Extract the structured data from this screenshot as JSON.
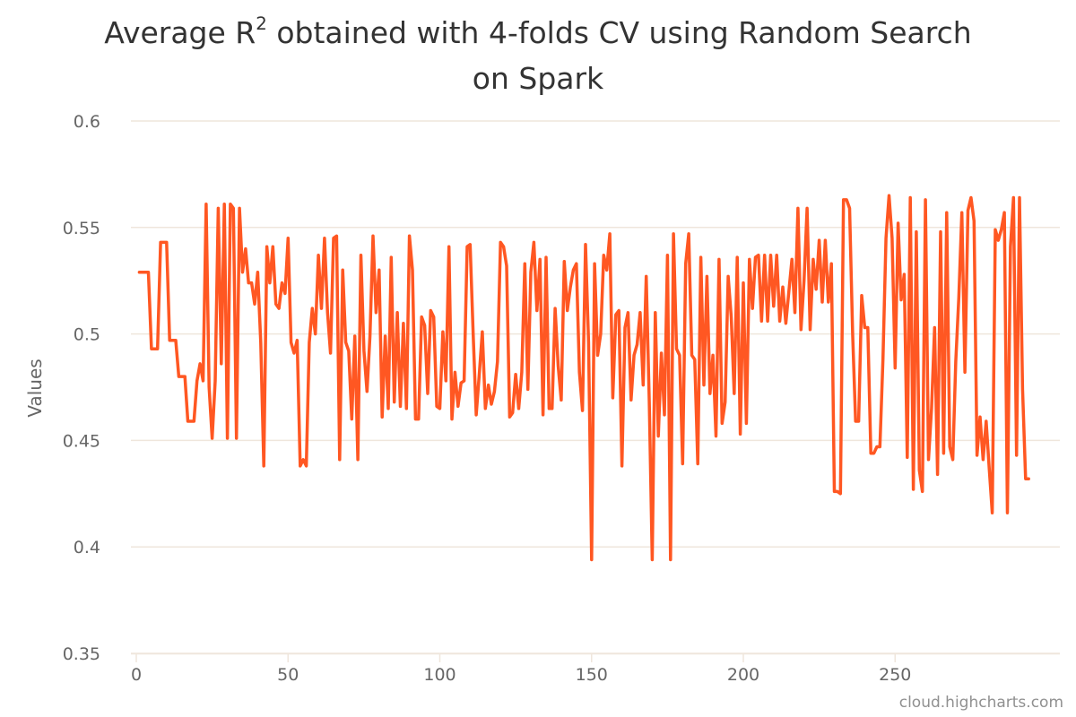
{
  "chart_data": {
    "type": "line",
    "title": "Average R² obtained with 4-folds CV using Random Search on Spark",
    "title_lines": [
      {
        "prefix": "Average R",
        "sup": "2",
        "suffix": " obtained with 4-folds CV using Random Search"
      },
      {
        "prefix": "on Spark",
        "sup": "",
        "suffix": ""
      }
    ],
    "xlabel": "",
    "ylabel": "Values",
    "xlim": [
      0,
      300
    ],
    "ylim": [
      0.35,
      0.6
    ],
    "x_ticks": [
      0,
      50,
      100,
      150,
      200,
      250
    ],
    "y_ticks": [
      {
        "value": 0.35,
        "label": "0.35"
      },
      {
        "value": 0.4,
        "label": "0.4"
      },
      {
        "value": 0.45,
        "label": "0.45"
      },
      {
        "value": 0.5,
        "label": "0.5"
      },
      {
        "value": 0.55,
        "label": "0.55"
      },
      {
        "value": 0.6,
        "label": "0.6"
      }
    ],
    "grid": true,
    "legend": "none",
    "series": [
      {
        "color": "#ff5722",
        "points": [
          [
            1,
            0.529
          ],
          [
            4,
            0.529
          ],
          [
            5,
            0.493
          ],
          [
            7,
            0.493
          ],
          [
            8,
            0.543
          ],
          [
            10,
            0.543
          ],
          [
            11,
            0.497
          ],
          [
            13,
            0.497
          ],
          [
            14,
            0.48
          ],
          [
            16,
            0.48
          ],
          [
            17,
            0.459
          ],
          [
            19,
            0.459
          ],
          [
            20,
            0.478
          ],
          [
            21,
            0.486
          ],
          [
            22,
            0.478
          ],
          [
            23,
            0.561
          ],
          [
            24,
            0.475
          ],
          [
            25,
            0.451
          ],
          [
            26,
            0.478
          ],
          [
            27,
            0.559
          ],
          [
            28,
            0.486
          ],
          [
            29,
            0.561
          ],
          [
            30,
            0.451
          ],
          [
            31,
            0.561
          ],
          [
            32,
            0.559
          ],
          [
            33,
            0.451
          ],
          [
            34,
            0.559
          ],
          [
            35,
            0.529
          ],
          [
            36,
            0.54
          ],
          [
            37,
            0.524
          ],
          [
            38,
            0.524
          ],
          [
            39,
            0.514
          ],
          [
            40,
            0.529
          ],
          [
            41,
            0.496
          ],
          [
            42,
            0.438
          ],
          [
            43,
            0.541
          ],
          [
            44,
            0.524
          ],
          [
            45,
            0.541
          ],
          [
            46,
            0.514
          ],
          [
            47,
            0.512
          ],
          [
            48,
            0.524
          ],
          [
            49,
            0.519
          ],
          [
            50,
            0.545
          ],
          [
            51,
            0.496
          ],
          [
            52,
            0.491
          ],
          [
            53,
            0.497
          ],
          [
            54,
            0.438
          ],
          [
            55,
            0.441
          ],
          [
            56,
            0.438
          ],
          [
            57,
            0.496
          ],
          [
            58,
            0.512
          ],
          [
            59,
            0.5
          ],
          [
            60,
            0.537
          ],
          [
            61,
            0.512
          ],
          [
            62,
            0.545
          ],
          [
            63,
            0.51
          ],
          [
            64,
            0.491
          ],
          [
            65,
            0.545
          ],
          [
            66,
            0.546
          ],
          [
            67,
            0.441
          ],
          [
            68,
            0.53
          ],
          [
            69,
            0.496
          ],
          [
            70,
            0.492
          ],
          [
            71,
            0.46
          ],
          [
            72,
            0.499
          ],
          [
            73,
            0.441
          ],
          [
            74,
            0.537
          ],
          [
            75,
            0.492
          ],
          [
            76,
            0.473
          ],
          [
            77,
            0.499
          ],
          [
            78,
            0.546
          ],
          [
            79,
            0.51
          ],
          [
            80,
            0.53
          ],
          [
            81,
            0.461
          ],
          [
            82,
            0.499
          ],
          [
            83,
            0.465
          ],
          [
            84,
            0.536
          ],
          [
            85,
            0.468
          ],
          [
            86,
            0.51
          ],
          [
            87,
            0.466
          ],
          [
            88,
            0.505
          ],
          [
            89,
            0.465
          ],
          [
            90,
            0.546
          ],
          [
            91,
            0.53
          ],
          [
            92,
            0.46
          ],
          [
            93,
            0.46
          ],
          [
            94,
            0.508
          ],
          [
            95,
            0.504
          ],
          [
            96,
            0.472
          ],
          [
            97,
            0.511
          ],
          [
            98,
            0.508
          ],
          [
            99,
            0.466
          ],
          [
            100,
            0.465
          ],
          [
            101,
            0.501
          ],
          [
            102,
            0.478
          ],
          [
            103,
            0.541
          ],
          [
            104,
            0.46
          ],
          [
            105,
            0.482
          ],
          [
            106,
            0.466
          ],
          [
            107,
            0.477
          ],
          [
            108,
            0.478
          ],
          [
            109,
            0.541
          ],
          [
            110,
            0.542
          ],
          [
            111,
            0.5
          ],
          [
            112,
            0.462
          ],
          [
            113,
            0.481
          ],
          [
            114,
            0.501
          ],
          [
            115,
            0.465
          ],
          [
            116,
            0.476
          ],
          [
            117,
            0.467
          ],
          [
            118,
            0.473
          ],
          [
            119,
            0.487
          ],
          [
            120,
            0.543
          ],
          [
            121,
            0.541
          ],
          [
            122,
            0.532
          ],
          [
            123,
            0.461
          ],
          [
            124,
            0.463
          ],
          [
            125,
            0.481
          ],
          [
            126,
            0.465
          ],
          [
            127,
            0.482
          ],
          [
            128,
            0.533
          ],
          [
            129,
            0.474
          ],
          [
            130,
            0.529
          ],
          [
            131,
            0.543
          ],
          [
            132,
            0.511
          ],
          [
            133,
            0.535
          ],
          [
            134,
            0.462
          ],
          [
            135,
            0.536
          ],
          [
            136,
            0.465
          ],
          [
            137,
            0.465
          ],
          [
            138,
            0.512
          ],
          [
            139,
            0.485
          ],
          [
            140,
            0.469
          ],
          [
            141,
            0.534
          ],
          [
            142,
            0.511
          ],
          [
            143,
            0.522
          ],
          [
            144,
            0.53
          ],
          [
            145,
            0.533
          ],
          [
            146,
            0.482
          ],
          [
            147,
            0.464
          ],
          [
            148,
            0.542
          ],
          [
            149,
            0.496
          ],
          [
            150,
            0.394
          ],
          [
            151,
            0.533
          ],
          [
            152,
            0.49
          ],
          [
            153,
            0.5
          ],
          [
            154,
            0.537
          ],
          [
            155,
            0.53
          ],
          [
            156,
            0.547
          ],
          [
            157,
            0.47
          ],
          [
            158,
            0.509
          ],
          [
            159,
            0.511
          ],
          [
            160,
            0.438
          ],
          [
            161,
            0.503
          ],
          [
            162,
            0.51
          ],
          [
            163,
            0.469
          ],
          [
            164,
            0.49
          ],
          [
            165,
            0.495
          ],
          [
            166,
            0.51
          ],
          [
            167,
            0.476
          ],
          [
            168,
            0.527
          ],
          [
            169,
            0.468
          ],
          [
            170,
            0.394
          ],
          [
            171,
            0.51
          ],
          [
            172,
            0.452
          ],
          [
            173,
            0.491
          ],
          [
            174,
            0.462
          ],
          [
            175,
            0.537
          ],
          [
            176,
            0.394
          ],
          [
            177,
            0.547
          ],
          [
            178,
            0.493
          ],
          [
            179,
            0.49
          ],
          [
            180,
            0.439
          ],
          [
            181,
            0.533
          ],
          [
            182,
            0.547
          ],
          [
            183,
            0.49
          ],
          [
            184,
            0.488
          ],
          [
            185,
            0.439
          ],
          [
            186,
            0.536
          ],
          [
            187,
            0.476
          ],
          [
            188,
            0.527
          ],
          [
            189,
            0.472
          ],
          [
            190,
            0.49
          ],
          [
            191,
            0.452
          ],
          [
            192,
            0.535
          ],
          [
            193,
            0.458
          ],
          [
            194,
            0.468
          ],
          [
            195,
            0.527
          ],
          [
            196,
            0.508
          ],
          [
            197,
            0.472
          ],
          [
            198,
            0.536
          ],
          [
            199,
            0.453
          ],
          [
            200,
            0.524
          ],
          [
            201,
            0.458
          ],
          [
            202,
            0.535
          ],
          [
            203,
            0.512
          ],
          [
            204,
            0.536
          ],
          [
            205,
            0.537
          ],
          [
            206,
            0.506
          ],
          [
            207,
            0.537
          ],
          [
            208,
            0.506
          ],
          [
            209,
            0.537
          ],
          [
            210,
            0.513
          ],
          [
            211,
            0.537
          ],
          [
            212,
            0.506
          ],
          [
            213,
            0.522
          ],
          [
            214,
            0.505
          ],
          [
            215,
            0.52
          ],
          [
            216,
            0.535
          ],
          [
            217,
            0.51
          ],
          [
            218,
            0.559
          ],
          [
            219,
            0.502
          ],
          [
            220,
            0.525
          ],
          [
            221,
            0.559
          ],
          [
            222,
            0.502
          ],
          [
            223,
            0.535
          ],
          [
            224,
            0.521
          ],
          [
            225,
            0.544
          ],
          [
            226,
            0.515
          ],
          [
            227,
            0.544
          ],
          [
            228,
            0.515
          ],
          [
            229,
            0.533
          ],
          [
            230,
            0.426
          ],
          [
            231,
            0.426
          ],
          [
            232,
            0.425
          ],
          [
            233,
            0.563
          ],
          [
            234,
            0.563
          ],
          [
            235,
            0.559
          ],
          [
            236,
            0.5
          ],
          [
            237,
            0.459
          ],
          [
            238,
            0.459
          ],
          [
            239,
            0.518
          ],
          [
            240,
            0.503
          ],
          [
            241,
            0.503
          ],
          [
            242,
            0.444
          ],
          [
            243,
            0.444
          ],
          [
            244,
            0.447
          ],
          [
            245,
            0.447
          ],
          [
            246,
            0.488
          ],
          [
            247,
            0.545
          ],
          [
            248,
            0.565
          ],
          [
            249,
            0.545
          ],
          [
            250,
            0.484
          ],
          [
            251,
            0.552
          ],
          [
            252,
            0.516
          ],
          [
            253,
            0.528
          ],
          [
            254,
            0.442
          ],
          [
            255,
            0.564
          ],
          [
            256,
            0.427
          ],
          [
            257,
            0.548
          ],
          [
            258,
            0.436
          ],
          [
            259,
            0.426
          ],
          [
            260,
            0.563
          ],
          [
            261,
            0.441
          ],
          [
            262,
            0.465
          ],
          [
            263,
            0.503
          ],
          [
            264,
            0.434
          ],
          [
            265,
            0.548
          ],
          [
            266,
            0.444
          ],
          [
            267,
            0.557
          ],
          [
            268,
            0.447
          ],
          [
            269,
            0.441
          ],
          [
            270,
            0.487
          ],
          [
            271,
            0.517
          ],
          [
            272,
            0.557
          ],
          [
            273,
            0.482
          ],
          [
            274,
            0.558
          ],
          [
            275,
            0.564
          ],
          [
            276,
            0.553
          ],
          [
            277,
            0.443
          ],
          [
            278,
            0.461
          ],
          [
            279,
            0.441
          ],
          [
            280,
            0.459
          ],
          [
            281,
            0.437
          ],
          [
            282,
            0.416
          ],
          [
            283,
            0.549
          ],
          [
            284,
            0.544
          ],
          [
            285,
            0.549
          ],
          [
            286,
            0.557
          ],
          [
            287,
            0.416
          ],
          [
            288,
            0.541
          ],
          [
            289,
            0.564
          ],
          [
            290,
            0.443
          ],
          [
            291,
            0.564
          ],
          [
            292,
            0.474
          ],
          [
            293,
            0.432
          ],
          [
            294,
            0.432
          ]
        ]
      }
    ],
    "credits": "cloud.highcharts.com"
  }
}
